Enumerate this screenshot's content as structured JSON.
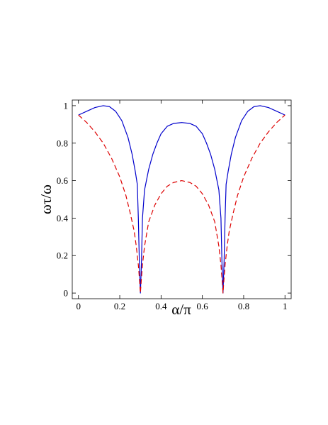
{
  "chart_data": {
    "type": "line",
    "title": "",
    "xlabel": "α/π",
    "ylabel": "ωτ/ω",
    "xlim": [
      -0.03,
      1.03
    ],
    "ylim": [
      -0.03,
      1.03
    ],
    "xticks": [
      0,
      0.2,
      0.4,
      0.6,
      0.8,
      1
    ],
    "xtick_labels": [
      "0",
      "0.2",
      "0.4",
      "0.6",
      "0.8",
      "1"
    ],
    "yticks": [
      0,
      0.2,
      0.4,
      0.6,
      0.8,
      1
    ],
    "ytick_labels": [
      "0",
      "0.2",
      "0.4",
      "0.6",
      "0.8",
      "1"
    ],
    "grid": false,
    "legend": "none",
    "series": [
      {
        "color": "#0000cc",
        "style": "solid",
        "x": [
          0,
          0.04,
          0.08,
          0.12,
          0.15,
          0.18,
          0.21,
          0.24,
          0.26,
          0.275,
          0.285,
          0.29,
          0.295,
          0.3,
          0.305,
          0.31,
          0.32,
          0.34,
          0.36,
          0.38,
          0.4,
          0.43,
          0.46,
          0.5,
          0.54,
          0.57,
          0.6,
          0.62,
          0.64,
          0.66,
          0.68,
          0.69,
          0.695,
          0.7,
          0.705,
          0.71,
          0.715,
          0.725,
          0.74,
          0.76,
          0.79,
          0.82,
          0.85,
          0.88,
          0.92,
          0.96,
          1
        ],
        "y": [
          0.95,
          0.97,
          0.99,
          1.0,
          0.995,
          0.97,
          0.92,
          0.83,
          0.74,
          0.65,
          0.58,
          0.4,
          0.16,
          0.0,
          0.16,
          0.4,
          0.55,
          0.66,
          0.74,
          0.8,
          0.85,
          0.89,
          0.905,
          0.91,
          0.905,
          0.89,
          0.85,
          0.8,
          0.74,
          0.66,
          0.55,
          0.4,
          0.16,
          0.0,
          0.16,
          0.4,
          0.58,
          0.65,
          0.74,
          0.83,
          0.92,
          0.97,
          0.995,
          1.0,
          0.99,
          0.97,
          0.95
        ]
      },
      {
        "color": "#dd0000",
        "style": "dashed",
        "x": [
          0,
          0.04,
          0.08,
          0.12,
          0.16,
          0.2,
          0.23,
          0.25,
          0.27,
          0.28,
          0.29,
          0.295,
          0.3,
          0.305,
          0.31,
          0.32,
          0.34,
          0.37,
          0.4,
          0.43,
          0.46,
          0.5,
          0.54,
          0.57,
          0.6,
          0.63,
          0.66,
          0.68,
          0.69,
          0.695,
          0.7,
          0.705,
          0.71,
          0.72,
          0.73,
          0.75,
          0.77,
          0.8,
          0.84,
          0.88,
          0.92,
          0.96,
          1
        ],
        "y": [
          0.95,
          0.91,
          0.86,
          0.8,
          0.72,
          0.62,
          0.52,
          0.43,
          0.33,
          0.25,
          0.15,
          0.08,
          0.0,
          0.08,
          0.15,
          0.25,
          0.38,
          0.47,
          0.53,
          0.57,
          0.59,
          0.6,
          0.59,
          0.57,
          0.53,
          0.47,
          0.38,
          0.25,
          0.15,
          0.08,
          0.0,
          0.08,
          0.15,
          0.25,
          0.33,
          0.43,
          0.52,
          0.62,
          0.72,
          0.8,
          0.86,
          0.91,
          0.95
        ]
      }
    ]
  }
}
